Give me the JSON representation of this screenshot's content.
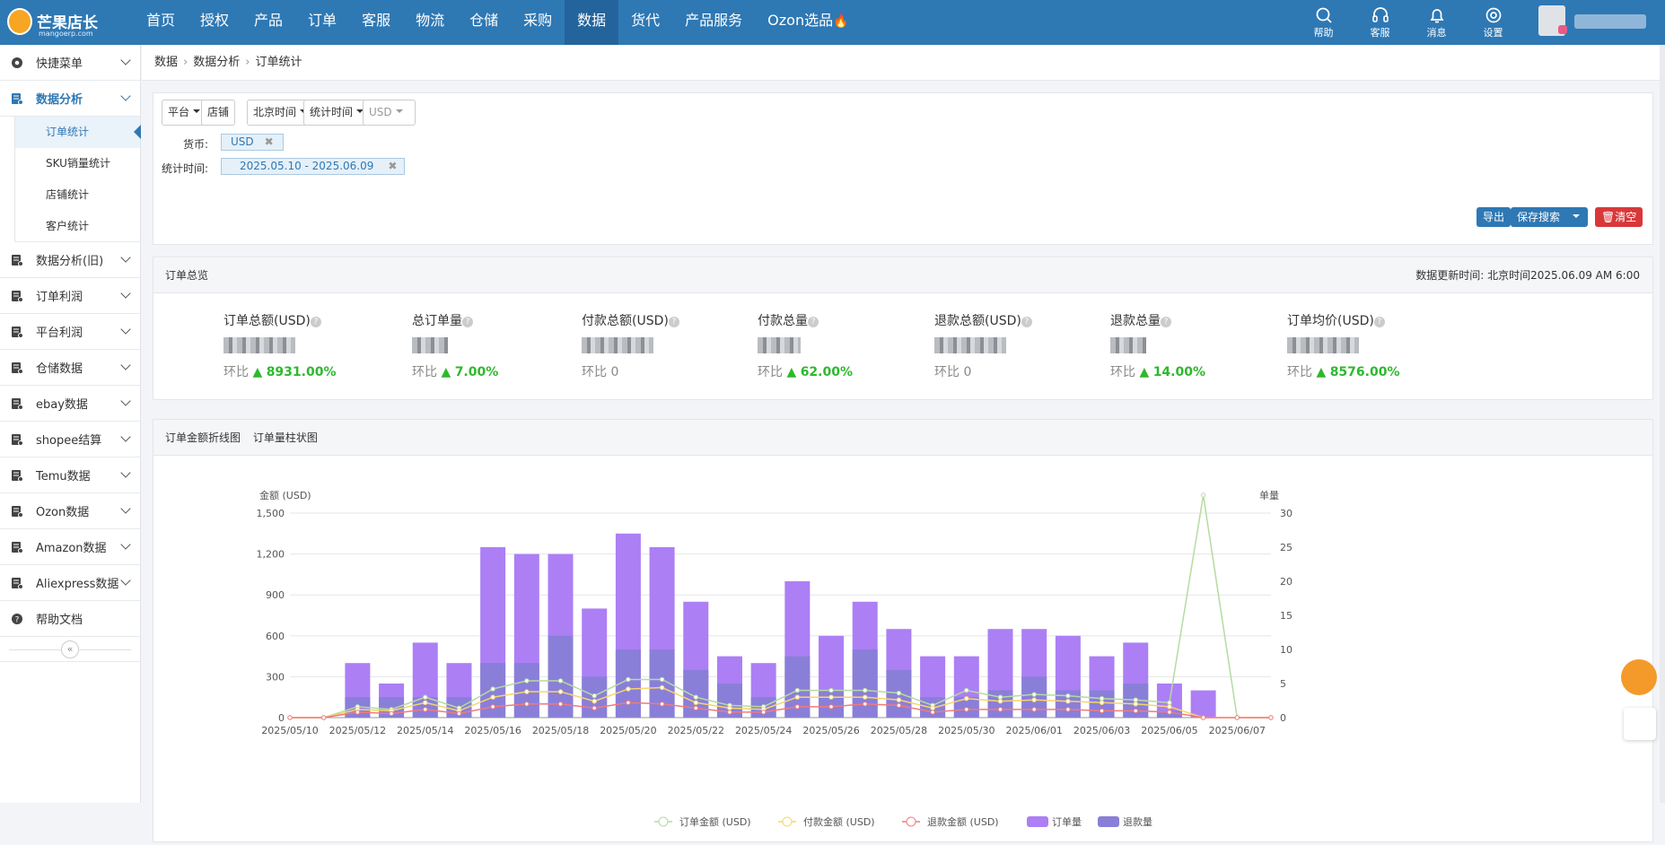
{
  "app": {
    "name": "芒果店长",
    "domain": "mangoerp.com"
  },
  "nav": [
    "首页",
    "授权",
    "产品",
    "订单",
    "客服",
    "物流",
    "仓储",
    "采购",
    "数据",
    "货代",
    "产品服务",
    "Ozon选品"
  ],
  "nav_active": "数据",
  "tools": [
    {
      "label": "帮助",
      "icon": "search-icon"
    },
    {
      "label": "客服",
      "icon": "headset-icon"
    },
    {
      "label": "消息",
      "icon": "bell-icon"
    },
    {
      "label": "设置",
      "icon": "gear-icon"
    }
  ],
  "sidebar": {
    "items": [
      {
        "label": "快捷菜单",
        "icon": "gear-icon"
      },
      {
        "label": "数据分析",
        "icon": "chart-icon",
        "open": true,
        "children": [
          "订单统计",
          "SKU销量统计",
          "店铺统计",
          "客户统计"
        ],
        "active_child": "订单统计"
      },
      {
        "label": "数据分析(旧)",
        "icon": "chart-icon"
      },
      {
        "label": "订单利润",
        "icon": "chart-icon"
      },
      {
        "label": "平台利润",
        "icon": "chart-icon"
      },
      {
        "label": "仓储数据",
        "icon": "chart-icon"
      },
      {
        "label": "ebay数据",
        "icon": "chart-icon"
      },
      {
        "label": "shopee结算",
        "icon": "chart-icon"
      },
      {
        "label": "Temu数据",
        "icon": "chart-icon"
      },
      {
        "label": "Ozon数据",
        "icon": "chart-icon"
      },
      {
        "label": "Amazon数据",
        "icon": "chart-icon"
      },
      {
        "label": "Aliexpress数据",
        "icon": "chart-icon"
      },
      {
        "label": "帮助文档",
        "icon": "help-icon"
      }
    ],
    "collapse_label": "«"
  },
  "breadcrumb": [
    "数据",
    "数据分析",
    "订单统计"
  ],
  "filters": {
    "dropdowns": [
      "平台",
      "北京时间",
      "统计时间",
      "USD"
    ],
    "store_button": "店铺",
    "currency_label": "货币:",
    "currency_tag": "USD",
    "time_label": "统计时间:",
    "time_tag": "2025.05.10 - 2025.06.09",
    "export": "导出",
    "save_search": "保存搜索",
    "clear": "清空"
  },
  "overview": {
    "title": "订单总览",
    "updated": "数据更新时间: 北京时间2025.06.09 AM 6:00",
    "cmp_prefix": "环比",
    "stats": [
      {
        "label": "订单总额(USD)",
        "change": "8931.00%",
        "up": true
      },
      {
        "label": "总订单量",
        "change": "7.00%",
        "up": true
      },
      {
        "label": "付款总额(USD)",
        "change": "0",
        "up": false
      },
      {
        "label": "付款总量",
        "change": "62.00%",
        "up": true
      },
      {
        "label": "退款总额(USD)",
        "change": "0",
        "up": false
      },
      {
        "label": "退款总量",
        "change": "14.00%",
        "up": true
      },
      {
        "label": "订单均价(USD)",
        "change": "8576.00%",
        "up": true
      }
    ]
  },
  "chart_tabs": [
    "订单金额折线图",
    "订单量柱状图"
  ],
  "colors": {
    "order_amount": "#b5dba0",
    "pay_amount": "#f7d56a",
    "refund_amount": "#f27a7a",
    "order_qty": "#ac7ff5",
    "refund_qty": "#8a7fd8",
    "brand": "#2e78b4"
  },
  "chart_data": {
    "type": "bar",
    "ylabel": "金额 (USD)",
    "y2label": "单量",
    "ylim": [
      0,
      1500
    ],
    "y2lim": [
      0,
      30
    ],
    "yticks": [
      "0",
      "300",
      "600",
      "900",
      "1,200",
      "1,500"
    ],
    "y2ticks": [
      "0",
      "5",
      "10",
      "15",
      "20",
      "25",
      "30"
    ],
    "x": [
      "2025/05/10",
      "2025/05/11",
      "2025/05/12",
      "2025/05/13",
      "2025/05/14",
      "2025/05/15",
      "2025/05/16",
      "2025/05/17",
      "2025/05/18",
      "2025/05/19",
      "2025/05/20",
      "2025/05/21",
      "2025/05/22",
      "2025/05/23",
      "2025/05/24",
      "2025/05/25",
      "2025/05/26",
      "2025/05/27",
      "2025/05/28",
      "2025/05/29",
      "2025/05/30",
      "2025/05/31",
      "2025/06/01",
      "2025/06/02",
      "2025/06/03",
      "2025/06/04",
      "2025/06/05",
      "2025/06/06",
      "2025/06/07",
      "2025/06/08"
    ],
    "xtick_labels": [
      "2025/05/10",
      "2025/05/12",
      "2025/05/14",
      "2025/05/16",
      "2025/05/18",
      "2025/05/20",
      "2025/05/22",
      "2025/05/24",
      "2025/05/26",
      "2025/05/28",
      "2025/05/30",
      "2025/06/01",
      "2025/06/03",
      "2025/06/05",
      "2025/06/07"
    ],
    "series": [
      {
        "name": "订单金额 (USD)",
        "type": "line",
        "axis": "left",
        "values": [
          0,
          0,
          80,
          60,
          150,
          70,
          210,
          270,
          270,
          160,
          280,
          280,
          150,
          90,
          80,
          200,
          200,
          200,
          180,
          90,
          200,
          150,
          170,
          160,
          140,
          130,
          110,
          2500,
          0,
          0
        ]
      },
      {
        "name": "付款金额 (USD)",
        "type": "line",
        "axis": "left",
        "values": [
          0,
          0,
          60,
          50,
          110,
          50,
          150,
          190,
          190,
          120,
          210,
          220,
          110,
          70,
          60,
          150,
          150,
          150,
          130,
          70,
          140,
          120,
          130,
          120,
          110,
          100,
          80,
          0,
          0,
          0
        ]
      },
      {
        "name": "退款金额 (USD)",
        "type": "line",
        "axis": "left",
        "values": [
          0,
          0,
          40,
          30,
          60,
          30,
          80,
          100,
          100,
          70,
          110,
          100,
          70,
          40,
          40,
          80,
          80,
          100,
          90,
          40,
          60,
          60,
          60,
          60,
          50,
          50,
          40,
          0,
          0,
          0
        ]
      },
      {
        "name": "订单量",
        "type": "bar",
        "axis": "right",
        "values": [
          0,
          0,
          8,
          5,
          11,
          8,
          25,
          24,
          24,
          16,
          27,
          25,
          17,
          9,
          8,
          20,
          12,
          17,
          13,
          9,
          9,
          13,
          13,
          12,
          9,
          11,
          5,
          4,
          0,
          0
        ]
      },
      {
        "name": "退款量",
        "type": "bar",
        "axis": "right",
        "values": [
          0,
          0,
          3,
          3,
          3,
          3,
          8,
          8,
          12,
          6,
          10,
          10,
          7,
          5,
          3,
          9,
          4,
          10,
          7,
          3,
          3,
          4,
          6,
          4,
          4,
          5,
          1,
          0,
          0,
          0
        ]
      }
    ]
  }
}
